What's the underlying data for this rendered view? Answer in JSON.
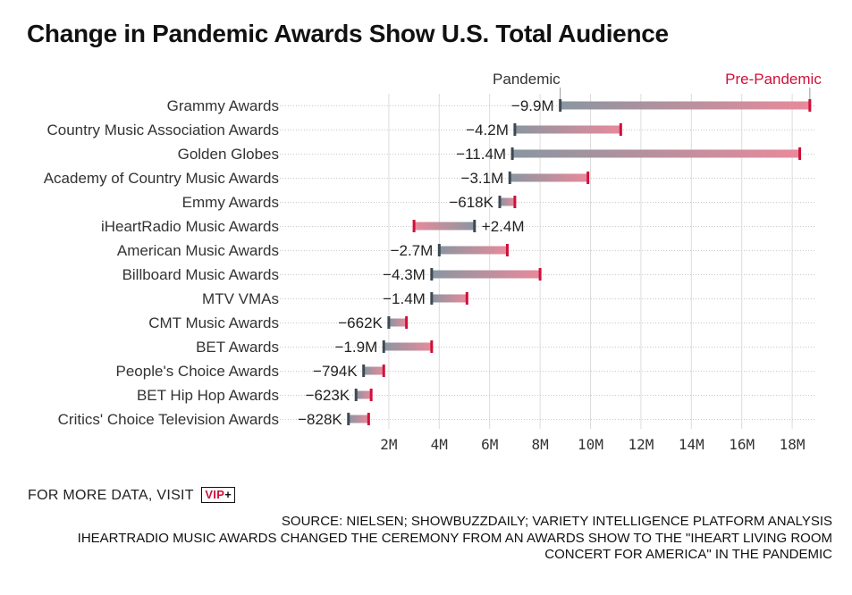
{
  "title": "Change in Pandemic Awards Show U.S. Total Audience",
  "footer": {
    "more_data": "FOR MORE DATA, VISIT",
    "vip_text": "VIP",
    "vip_plus": "+",
    "source": "SOURCE: NIELSEN; SHOWBUZZDAILY; VARIETY INTELLIGENCE PLATFORM ANALYSIS",
    "note_line1": "IHEARTRADIO MUSIC AWARDS CHANGED THE CEREMONY FROM AN AWARDS SHOW TO THE \"IHEART LIVING ROOM",
    "note_line2": "CONCERT FOR AMERICA\" IN THE PANDEMIC"
  },
  "colors": {
    "pandemic": "#3d4a55",
    "pre_pandemic": "#d0103a",
    "bar_start": "#8a96a0",
    "bar_end": "#e88a9c"
  },
  "chart_data": {
    "type": "dumbbell",
    "title": "Change in Pandemic Awards Show U.S. Total Audience",
    "legend": [
      "Pandemic",
      "Pre-Pandemic"
    ],
    "x_ticks": [
      "2M",
      "4M",
      "6M",
      "8M",
      "10M",
      "12M",
      "14M",
      "16M",
      "18M"
    ],
    "x_tick_values": [
      2,
      4,
      6,
      8,
      10,
      12,
      14,
      16,
      18
    ],
    "xlim": [
      0,
      19
    ],
    "unit": "millions of viewers",
    "grid": true,
    "rows": [
      {
        "name": "Grammy Awards",
        "pandemic": 8.8,
        "pre_pandemic": 18.7,
        "change": "−9.9M"
      },
      {
        "name": "Country Music Association Awards",
        "pandemic": 7.0,
        "pre_pandemic": 11.2,
        "change": "−4.2M"
      },
      {
        "name": "Golden Globes",
        "pandemic": 6.9,
        "pre_pandemic": 18.3,
        "change": "−11.4M"
      },
      {
        "name": "Academy of Country Music Awards",
        "pandemic": 6.8,
        "pre_pandemic": 9.9,
        "change": "−3.1M"
      },
      {
        "name": "Emmy Awards",
        "pandemic": 6.4,
        "pre_pandemic": 7.0,
        "change": "−618K"
      },
      {
        "name": "iHeartRadio Music Awards",
        "pandemic": 5.4,
        "pre_pandemic": 3.0,
        "change": "+2.4M"
      },
      {
        "name": "American Music Awards",
        "pandemic": 4.0,
        "pre_pandemic": 6.7,
        "change": "−2.7M"
      },
      {
        "name": "Billboard Music Awards",
        "pandemic": 3.7,
        "pre_pandemic": 8.0,
        "change": "−4.3M"
      },
      {
        "name": "MTV VMAs",
        "pandemic": 3.7,
        "pre_pandemic": 5.1,
        "change": "−1.4M"
      },
      {
        "name": "CMT Music Awards",
        "pandemic": 2.0,
        "pre_pandemic": 2.7,
        "change": "−662K"
      },
      {
        "name": "BET Awards",
        "pandemic": 1.8,
        "pre_pandemic": 3.7,
        "change": "−1.9M"
      },
      {
        "name": "People's Choice Awards",
        "pandemic": 1.0,
        "pre_pandemic": 1.8,
        "change": "−794K"
      },
      {
        "name": "BET Hip Hop Awards",
        "pandemic": 0.7,
        "pre_pandemic": 1.3,
        "change": "−623K"
      },
      {
        "name": "Critics' Choice Television Awards",
        "pandemic": 0.4,
        "pre_pandemic": 1.2,
        "change": "−828K"
      }
    ]
  }
}
